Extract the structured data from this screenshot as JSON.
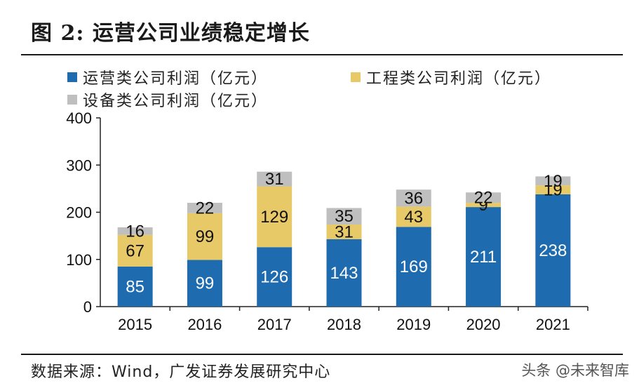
{
  "figure_title": "图 2: 运营公司业绩稳定增长",
  "source_note": "数据来源：Wind，广发证券发展研究中心",
  "watermark": "头条 @未来智库",
  "chart_data": {
    "type": "bar",
    "stacked": true,
    "categories": [
      "2015",
      "2016",
      "2017",
      "2018",
      "2019",
      "2020",
      "2021"
    ],
    "series": [
      {
        "name": "运营类公司利润（亿元）",
        "color": "#1f6bb0",
        "values": [
          85,
          99,
          126,
          143,
          169,
          211,
          238
        ]
      },
      {
        "name": "工程类公司利润（亿元）",
        "color": "#e8c967",
        "values": [
          67,
          99,
          129,
          31,
          43,
          9,
          19
        ]
      },
      {
        "name": "设备类公司利润（亿元）",
        "color": "#bfbfbf",
        "values": [
          16,
          22,
          31,
          35,
          36,
          22,
          19
        ]
      }
    ],
    "ylim": [
      0,
      400
    ],
    "yticks": [
      0,
      100,
      200,
      300,
      400
    ],
    "grid": false,
    "legend_position": "top"
  }
}
